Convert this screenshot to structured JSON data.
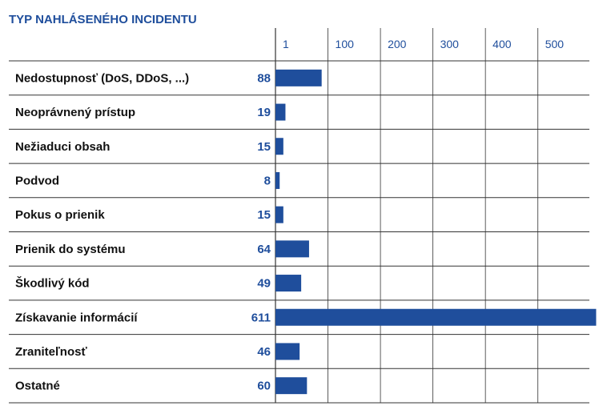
{
  "chart_data": {
    "type": "bar",
    "orientation": "horizontal",
    "title": "TYP NAHLÁSENÉHO INCIDENTU",
    "categories": [
      "Nedostupnosť (DoS, DDoS, ...)",
      "Neoprávnený prístup",
      "Nežiaduci obsah",
      "Podvod",
      "Pokus o prienik",
      "Prienik do systému",
      "Škodlivý kód",
      "Získavanie informácií",
      "Zraniteľnosť",
      "Ostatné"
    ],
    "values": [
      88,
      19,
      15,
      8,
      15,
      64,
      49,
      611,
      46,
      60
    ],
    "x_ticks": [
      1,
      100,
      200,
      300,
      400,
      500
    ],
    "xlim": [
      1,
      600
    ],
    "grid": true,
    "colors": {
      "bar": "#1f4e9c",
      "title": "#1f4e9c",
      "value_label": "#1f4e9c",
      "tick_label": "#1f4e9c",
      "category_label": "#111111",
      "grid": "#333333"
    }
  }
}
